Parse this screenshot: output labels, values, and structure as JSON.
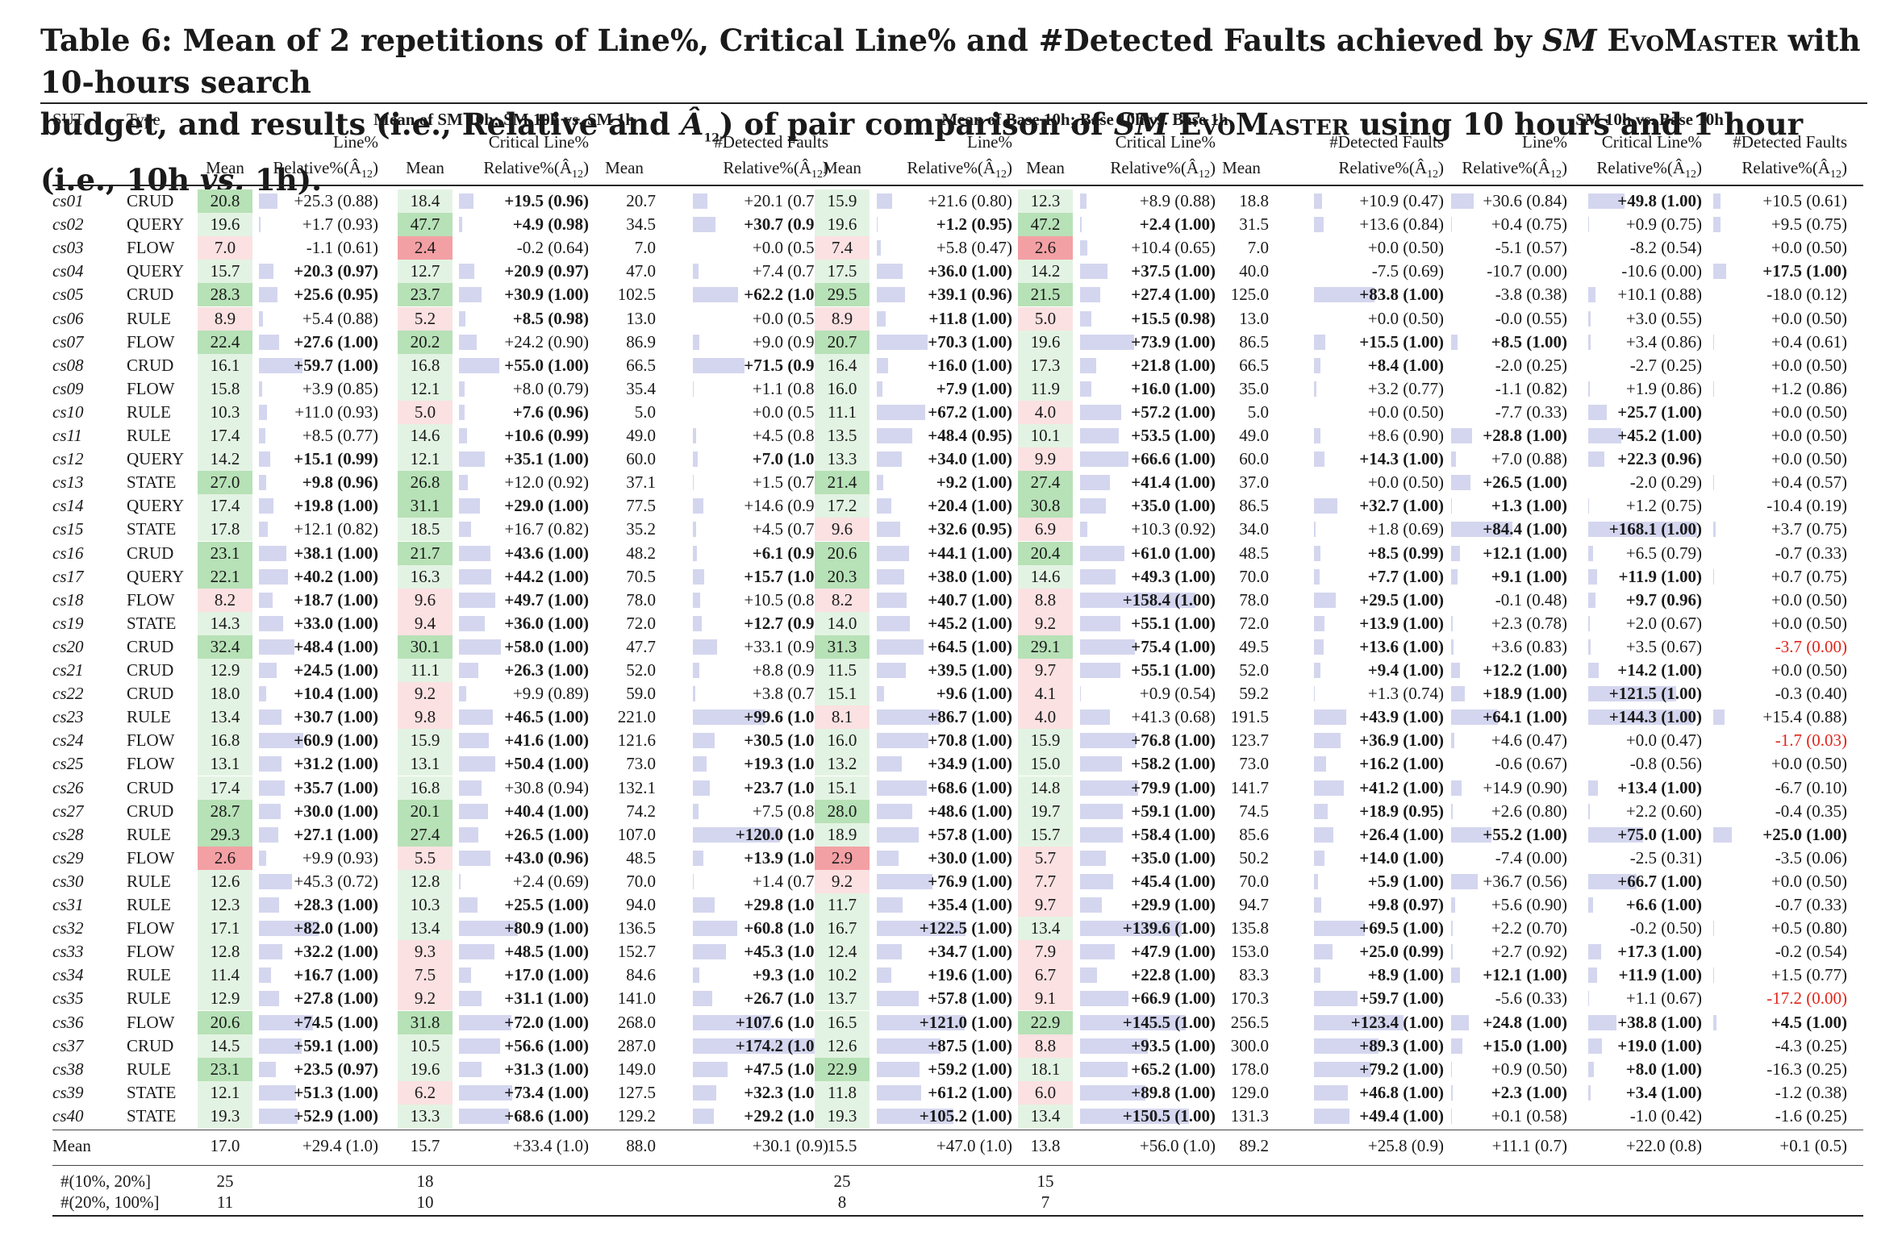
{
  "caption": {
    "line1_a": "Table 6: Mean of 2 repetitions of Line%, Critical Line% and #Detected Faults achieved by ",
    "sm": "SM",
    "evomaster": " EvoMaster",
    "line1_b": " with 10-hours search",
    "line2_a": "budget, and results (i.e., Relative and ",
    "a12": "Â",
    "a12_sub": "12",
    "line2_b": ") of pair comparison of ",
    "line2_c": " using 10 hours and 1 hour (i.e., 10h ",
    "vs": "vs.",
    "line2_d": " 1h)."
  },
  "header": {
    "sut": "SUT",
    "type": "Type",
    "group1": "Mean of SM 10h; SM 10h vs. SM 1h",
    "group2": "Mean of Base 10h; Base 10h vs. Base 1h",
    "group3": "SM 10h vs. Base 10h",
    "mean": "Mean",
    "line": "Line%",
    "critical": "Critical Line%",
    "faults": "#Detected Faults",
    "relative": "Relative%(Â",
    "rel_sub": "12",
    "rel_close": ")"
  },
  "rows": [
    [
      "cs01",
      "CRUD",
      "20.8",
      "+25.3 (0.88)",
      "18.4",
      "+19.5 (0.96)",
      "20.7",
      "+20.1 (0.71)",
      "15.9",
      "+21.6 (0.80)",
      "12.3",
      "+8.9 (0.88)",
      "18.8",
      "+10.9 (0.47)",
      "+30.6 (0.84)",
      "+49.8 (1.00)",
      "+10.5 (0.61)"
    ],
    [
      "cs02",
      "QUERY",
      "19.6",
      "+1.7 (0.93)",
      "47.7",
      "+4.9 (0.98)",
      "34.5",
      "+30.7 (0.99)",
      "19.6",
      "+1.2 (0.95)",
      "47.2",
      "+2.4 (1.00)",
      "31.5",
      "+13.6 (0.84)",
      "+0.4 (0.75)",
      "+0.9 (0.75)",
      "+9.5 (0.75)"
    ],
    [
      "cs03",
      "FLOW",
      "7.0",
      "-1.1 (0.61)",
      "2.4",
      "-0.2 (0.64)",
      "7.0",
      "+0.0 (0.50)",
      "7.4",
      "+5.8 (0.47)",
      "2.6",
      "+10.4 (0.65)",
      "7.0",
      "+0.0 (0.50)",
      "-5.1 (0.57)",
      "-8.2 (0.54)",
      "+0.0 (0.50)"
    ],
    [
      "cs04",
      "QUERY",
      "15.7",
      "+20.3 (0.97)",
      "12.7",
      "+20.9 (0.97)",
      "47.0",
      "+7.4 (0.75)",
      "17.5",
      "+36.0 (1.00)",
      "14.2",
      "+37.5 (1.00)",
      "40.0",
      "-7.5 (0.69)",
      "-10.7 (0.00)",
      "-10.6 (0.00)",
      "+17.5 (1.00)"
    ],
    [
      "cs05",
      "CRUD",
      "28.3",
      "+25.6 (0.95)",
      "23.7",
      "+30.9 (1.00)",
      "102.5",
      "+62.2 (1.00)",
      "29.5",
      "+39.1 (0.96)",
      "21.5",
      "+27.4 (1.00)",
      "125.0",
      "+83.8 (1.00)",
      "-3.8 (0.38)",
      "+10.1 (0.88)",
      "-18.0 (0.12)"
    ],
    [
      "cs06",
      "RULE",
      "8.9",
      "+5.4 (0.88)",
      "5.2",
      "+8.5 (0.98)",
      "13.0",
      "+0.0 (0.50)",
      "8.9",
      "+11.8 (1.00)",
      "5.0",
      "+15.5 (0.98)",
      "13.0",
      "+0.0 (0.50)",
      "-0.0 (0.55)",
      "+3.0 (0.55)",
      "+0.0 (0.50)"
    ],
    [
      "cs07",
      "FLOW",
      "22.4",
      "+27.6 (1.00)",
      "20.2",
      "+24.2 (0.90)",
      "86.9",
      "+9.0 (0.90)",
      "20.7",
      "+70.3 (1.00)",
      "19.6",
      "+73.9 (1.00)",
      "86.5",
      "+15.5 (1.00)",
      "+8.5 (1.00)",
      "+3.4 (0.86)",
      "+0.4 (0.61)"
    ],
    [
      "cs08",
      "CRUD",
      "16.1",
      "+59.7 (1.00)",
      "16.8",
      "+55.0 (1.00)",
      "66.5",
      "+71.5 (0.99)",
      "16.4",
      "+16.0 (1.00)",
      "17.3",
      "+21.8 (1.00)",
      "66.5",
      "+8.4 (1.00)",
      "-2.0 (0.25)",
      "-2.7 (0.25)",
      "+0.0 (0.50)"
    ],
    [
      "cs09",
      "FLOW",
      "15.8",
      "+3.9 (0.85)",
      "12.1",
      "+8.0 (0.79)",
      "35.4",
      "+1.1 (0.83)",
      "16.0",
      "+7.9 (1.00)",
      "11.9",
      "+16.0 (1.00)",
      "35.0",
      "+3.2 (0.77)",
      "-1.1 (0.82)",
      "+1.9 (0.86)",
      "+1.2 (0.86)"
    ],
    [
      "cs10",
      "RULE",
      "10.3",
      "+11.0 (0.93)",
      "5.0",
      "+7.6 (0.96)",
      "5.0",
      "+0.0 (0.50)",
      "11.1",
      "+67.2 (1.00)",
      "4.0",
      "+57.2 (1.00)",
      "5.0",
      "+0.0 (0.50)",
      "-7.7 (0.33)",
      "+25.7 (1.00)",
      "+0.0 (0.50)"
    ],
    [
      "cs11",
      "RULE",
      "17.4",
      "+8.5 (0.77)",
      "14.6",
      "+10.6 (0.99)",
      "49.0",
      "+4.5 (0.85)",
      "13.5",
      "+48.4 (0.95)",
      "10.1",
      "+53.5 (1.00)",
      "49.0",
      "+8.6 (0.90)",
      "+28.8 (1.00)",
      "+45.2 (1.00)",
      "+0.0 (0.50)"
    ],
    [
      "cs12",
      "QUERY",
      "14.2",
      "+15.1 (0.99)",
      "12.1",
      "+35.1 (1.00)",
      "60.0",
      "+7.0 (1.00)",
      "13.3",
      "+34.0 (1.00)",
      "9.9",
      "+66.6 (1.00)",
      "60.0",
      "+14.3 (1.00)",
      "+7.0 (0.88)",
      "+22.3 (0.96)",
      "+0.0 (0.50)"
    ],
    [
      "cs13",
      "STATE",
      "27.0",
      "+9.8 (0.96)",
      "26.8",
      "+12.0 (0.92)",
      "37.1",
      "+1.5 (0.72)",
      "21.4",
      "+9.2 (1.00)",
      "27.4",
      "+41.4 (1.00)",
      "37.0",
      "+0.0 (0.50)",
      "+26.5 (1.00)",
      "-2.0 (0.29)",
      "+0.4 (0.57)"
    ],
    [
      "cs14",
      "QUERY",
      "17.4",
      "+19.8 (1.00)",
      "31.1",
      "+29.0 (1.00)",
      "77.5",
      "+14.6 (0.91)",
      "17.2",
      "+20.4 (1.00)",
      "30.8",
      "+35.0 (1.00)",
      "86.5",
      "+32.7 (1.00)",
      "+1.3 (1.00)",
      "+1.2 (0.75)",
      "-10.4 (0.19)"
    ],
    [
      "cs15",
      "STATE",
      "17.8",
      "+12.1 (0.82)",
      "18.5",
      "+16.7 (0.82)",
      "35.2",
      "+4.5 (0.78)",
      "9.6",
      "+32.6 (0.95)",
      "6.9",
      "+10.3 (0.92)",
      "34.0",
      "+1.8 (0.69)",
      "+84.4 (1.00)",
      "+168.1 (1.00)",
      "+3.7 (0.75)"
    ],
    [
      "cs16",
      "CRUD",
      "23.1",
      "+38.1 (1.00)",
      "21.7",
      "+43.6 (1.00)",
      "48.2",
      "+6.1 (0.96)",
      "20.6",
      "+44.1 (1.00)",
      "20.4",
      "+61.0 (1.00)",
      "48.5",
      "+8.5 (0.99)",
      "+12.1 (1.00)",
      "+6.5 (0.79)",
      "-0.7 (0.33)"
    ],
    [
      "cs17",
      "QUERY",
      "22.1",
      "+40.2 (1.00)",
      "16.3",
      "+44.2 (1.00)",
      "70.5",
      "+15.7 (1.00)",
      "20.3",
      "+38.0 (1.00)",
      "14.6",
      "+49.3 (1.00)",
      "70.0",
      "+7.7 (1.00)",
      "+9.1 (1.00)",
      "+11.9 (1.00)",
      "+0.7 (0.75)"
    ],
    [
      "cs18",
      "FLOW",
      "8.2",
      "+18.7 (1.00)",
      "9.6",
      "+49.7 (1.00)",
      "78.0",
      "+10.5 (0.83)",
      "8.2",
      "+40.7 (1.00)",
      "8.8",
      "+158.4 (1.00)",
      "78.0",
      "+29.5 (1.00)",
      "-0.1 (0.48)",
      "+9.7 (0.96)",
      "+0.0 (0.50)"
    ],
    [
      "cs19",
      "STATE",
      "14.3",
      "+33.0 (1.00)",
      "9.4",
      "+36.0 (1.00)",
      "72.0",
      "+12.7 (0.95)",
      "14.0",
      "+45.2 (1.00)",
      "9.2",
      "+55.1 (1.00)",
      "72.0",
      "+13.9 (1.00)",
      "+2.3 (0.78)",
      "+2.0 (0.67)",
      "+0.0 (0.50)"
    ],
    [
      "cs20",
      "CRUD",
      "32.4",
      "+48.4 (1.00)",
      "30.1",
      "+58.0 (1.00)",
      "47.7",
      "+33.1 (0.92)",
      "31.3",
      "+64.5 (1.00)",
      "29.1",
      "+75.4 (1.00)",
      "49.5",
      "+13.6 (1.00)",
      "+3.6 (0.83)",
      "+3.5 (0.67)",
      "-3.7 (0.00)"
    ],
    [
      "cs21",
      "CRUD",
      "12.9",
      "+24.5 (1.00)",
      "11.1",
      "+26.3 (1.00)",
      "52.0",
      "+8.8 (0.90)",
      "11.5",
      "+39.5 (1.00)",
      "9.7",
      "+55.1 (1.00)",
      "52.0",
      "+9.4 (1.00)",
      "+12.2 (1.00)",
      "+14.2 (1.00)",
      "+0.0 (0.50)"
    ],
    [
      "cs22",
      "CRUD",
      "18.0",
      "+10.4 (1.00)",
      "9.2",
      "+9.9 (0.89)",
      "59.0",
      "+3.8 (0.71)",
      "15.1",
      "+9.6 (1.00)",
      "4.1",
      "+0.9 (0.54)",
      "59.2",
      "+1.3 (0.74)",
      "+18.9 (1.00)",
      "+121.5 (1.00)",
      "-0.3 (0.40)"
    ],
    [
      "cs23",
      "RULE",
      "13.4",
      "+30.7 (1.00)",
      "9.8",
      "+46.5 (1.00)",
      "221.0",
      "+99.6 (1.00)",
      "8.1",
      "+86.7 (1.00)",
      "4.0",
      "+41.3 (0.68)",
      "191.5",
      "+43.9 (1.00)",
      "+64.1 (1.00)",
      "+144.3 (1.00)",
      "+15.4 (0.88)"
    ],
    [
      "cs24",
      "FLOW",
      "16.8",
      "+60.9 (1.00)",
      "15.9",
      "+41.6 (1.00)",
      "121.6",
      "+30.5 (1.00)",
      "16.0",
      "+70.8 (1.00)",
      "15.9",
      "+76.8 (1.00)",
      "123.7",
      "+36.9 (1.00)",
      "+4.6 (0.47)",
      "+0.0 (0.47)",
      "-1.7 (0.03)"
    ],
    [
      "cs25",
      "FLOW",
      "13.1",
      "+31.2 (1.00)",
      "13.1",
      "+50.4 (1.00)",
      "73.0",
      "+19.3 (1.00)",
      "13.2",
      "+34.9 (1.00)",
      "15.0",
      "+58.2 (1.00)",
      "73.0",
      "+16.2 (1.00)",
      "-0.6 (0.67)",
      "-0.8 (0.56)",
      "+0.0 (0.50)"
    ],
    [
      "cs26",
      "CRUD",
      "17.4",
      "+35.7 (1.00)",
      "16.8",
      "+30.8 (0.94)",
      "132.1",
      "+23.7 (1.00)",
      "15.1",
      "+68.6 (1.00)",
      "14.8",
      "+79.9 (1.00)",
      "141.7",
      "+41.2 (1.00)",
      "+14.9 (0.90)",
      "+13.4 (1.00)",
      "-6.7 (0.10)"
    ],
    [
      "cs27",
      "CRUD",
      "28.7",
      "+30.0 (1.00)",
      "20.1",
      "+40.4 (1.00)",
      "74.2",
      "+7.5 (0.87)",
      "28.0",
      "+48.6 (1.00)",
      "19.7",
      "+59.1 (1.00)",
      "74.5",
      "+18.9 (0.95)",
      "+2.6 (0.80)",
      "+2.2 (0.60)",
      "-0.4 (0.35)"
    ],
    [
      "cs28",
      "RULE",
      "29.3",
      "+27.1 (1.00)",
      "27.4",
      "+26.5 (1.00)",
      "107.0",
      "+120.0 (1.00)",
      "18.9",
      "+57.8 (1.00)",
      "15.7",
      "+58.4 (1.00)",
      "85.6",
      "+26.4 (1.00)",
      "+55.2 (1.00)",
      "+75.0 (1.00)",
      "+25.0 (1.00)"
    ],
    [
      "cs29",
      "FLOW",
      "2.6",
      "+9.9 (0.93)",
      "5.5",
      "+43.0 (0.96)",
      "48.5",
      "+13.9 (1.00)",
      "2.9",
      "+30.0 (1.00)",
      "5.7",
      "+35.0 (1.00)",
      "50.2",
      "+14.0 (1.00)",
      "-7.4 (0.00)",
      "-2.5 (0.31)",
      "-3.5 (0.06)"
    ],
    [
      "cs30",
      "RULE",
      "12.6",
      "+45.3 (0.72)",
      "12.8",
      "+2.4 (0.69)",
      "70.0",
      "+1.4 (0.71)",
      "9.2",
      "+76.9 (1.00)",
      "7.7",
      "+45.4 (1.00)",
      "70.0",
      "+5.9 (1.00)",
      "+36.7 (0.56)",
      "+66.7 (1.00)",
      "+0.0 (0.50)"
    ],
    [
      "cs31",
      "RULE",
      "12.3",
      "+28.3 (1.00)",
      "10.3",
      "+25.5 (1.00)",
      "94.0",
      "+29.8 (1.00)",
      "11.7",
      "+35.4 (1.00)",
      "9.7",
      "+29.9 (1.00)",
      "94.7",
      "+9.8 (0.97)",
      "+5.6 (0.90)",
      "+6.6 (1.00)",
      "-0.7 (0.33)"
    ],
    [
      "cs32",
      "FLOW",
      "17.1",
      "+82.0 (1.00)",
      "13.4",
      "+80.9 (1.00)",
      "136.5",
      "+60.8 (1.00)",
      "16.7",
      "+122.5 (1.00)",
      "13.4",
      "+139.6 (1.00)",
      "135.8",
      "+69.5 (1.00)",
      "+2.2 (0.70)",
      "-0.2 (0.50)",
      "+0.5 (0.80)"
    ],
    [
      "cs33",
      "FLOW",
      "12.8",
      "+32.2 (1.00)",
      "9.3",
      "+48.5 (1.00)",
      "152.7",
      "+45.3 (1.00)",
      "12.4",
      "+34.7 (1.00)",
      "7.9",
      "+47.9 (1.00)",
      "153.0",
      "+25.0 (0.99)",
      "+2.7 (0.92)",
      "+17.3 (1.00)",
      "-0.2 (0.54)"
    ],
    [
      "cs34",
      "RULE",
      "11.4",
      "+16.7 (1.00)",
      "7.5",
      "+17.0 (1.00)",
      "84.6",
      "+9.3 (1.00)",
      "10.2",
      "+19.6 (1.00)",
      "6.7",
      "+22.8 (1.00)",
      "83.3",
      "+8.9 (1.00)",
      "+12.1 (1.00)",
      "+11.9 (1.00)",
      "+1.5 (0.77)"
    ],
    [
      "cs35",
      "RULE",
      "12.9",
      "+27.8 (1.00)",
      "9.2",
      "+31.1 (1.00)",
      "141.0",
      "+26.7 (1.00)",
      "13.7",
      "+57.8 (1.00)",
      "9.1",
      "+66.9 (1.00)",
      "170.3",
      "+59.7 (1.00)",
      "-5.6 (0.33)",
      "+1.1 (0.67)",
      "-17.2 (0.00)"
    ],
    [
      "cs36",
      "FLOW",
      "20.6",
      "+74.5 (1.00)",
      "31.8",
      "+72.0 (1.00)",
      "268.0",
      "+107.6 (1.00)",
      "16.5",
      "+121.0 (1.00)",
      "22.9",
      "+145.5 (1.00)",
      "256.5",
      "+123.4 (1.00)",
      "+24.8 (1.00)",
      "+38.8 (1.00)",
      "+4.5 (1.00)"
    ],
    [
      "cs37",
      "CRUD",
      "14.5",
      "+59.1 (1.00)",
      "10.5",
      "+56.6 (1.00)",
      "287.0",
      "+174.2 (1.00)",
      "12.6",
      "+87.5 (1.00)",
      "8.8",
      "+93.5 (1.00)",
      "300.0",
      "+89.3 (1.00)",
      "+15.0 (1.00)",
      "+19.0 (1.00)",
      "-4.3 (0.25)"
    ],
    [
      "cs38",
      "RULE",
      "23.1",
      "+23.5 (0.97)",
      "19.6",
      "+31.3 (1.00)",
      "149.0",
      "+47.5 (1.00)",
      "22.9",
      "+59.2 (1.00)",
      "18.1",
      "+65.2 (1.00)",
      "178.0",
      "+79.2 (1.00)",
      "+0.9 (0.50)",
      "+8.0 (1.00)",
      "-16.3 (0.25)"
    ],
    [
      "cs39",
      "STATE",
      "12.1",
      "+51.3 (1.00)",
      "6.2",
      "+73.4 (1.00)",
      "127.5",
      "+32.3 (1.00)",
      "11.8",
      "+61.2 (1.00)",
      "6.0",
      "+89.8 (1.00)",
      "129.0",
      "+46.8 (1.00)",
      "+2.3 (1.00)",
      "+3.4 (1.00)",
      "-1.2 (0.38)"
    ],
    [
      "cs40",
      "STATE",
      "19.3",
      "+52.9 (1.00)",
      "13.3",
      "+68.6 (1.00)",
      "129.2",
      "+29.2 (1.00)",
      "19.3",
      "+105.2 (1.00)",
      "13.4",
      "+150.5 (1.00)",
      "131.3",
      "+49.4 (1.00)",
      "+0.1 (0.58)",
      "-1.0 (0.42)",
      "-1.6 (0.25)"
    ]
  ],
  "mean_row": [
    "Mean",
    "",
    "17.0",
    "+29.4 (1.0)",
    "15.7",
    "+33.4 (1.0)",
    "88.0",
    "+30.1 (0.9)",
    "15.5",
    "+47.0 (1.0)",
    "13.8",
    "+56.0 (1.0)",
    "89.2",
    "+25.8 (0.9)",
    "+11.1 (0.7)",
    "+22.0 (0.8)",
    "+0.1 (0.5)"
  ],
  "count_rows": [
    {
      "label": "#(10%, 20%]",
      "c_line_sm": "25",
      "c_crit_sm": "18",
      "c_line_base": "25",
      "c_crit_base": "15"
    },
    {
      "label": "#(20%, 100%]",
      "c_line_sm": "11",
      "c_crit_sm": "10",
      "c_line_base": "8",
      "c_crit_base": "7"
    }
  ],
  "colors": {
    "green_strong": "#b7e1b7",
    "green_light": "#e3f3e3",
    "red_strong": "#f3a0a4",
    "red_light": "#fbe1e2",
    "bar": "#d4d6ef",
    "negative_text": "#e0241a"
  }
}
